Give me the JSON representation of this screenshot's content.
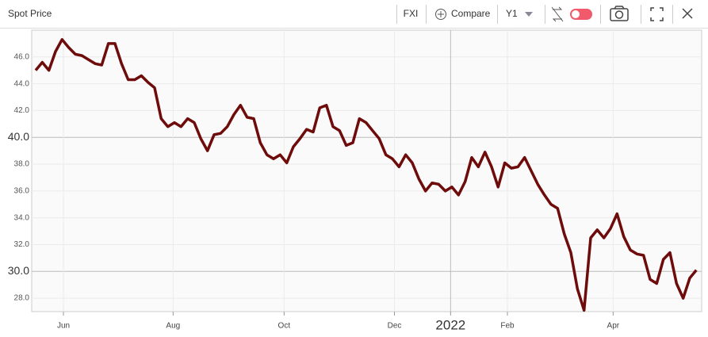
{
  "toolbar": {
    "symbol": "FXI",
    "compare": "Compare",
    "period": "Y1"
  },
  "chart_data": {
    "type": "line",
    "title": "Spot Price",
    "color": "#6e0b0b",
    "values": [
      45.0,
      45.6,
      45.0,
      46.4,
      47.3,
      46.7,
      46.2,
      46.1,
      45.8,
      45.5,
      45.4,
      47.0,
      47.0,
      45.5,
      44.3,
      44.3,
      44.6,
      44.1,
      43.7,
      41.4,
      40.8,
      41.1,
      40.8,
      41.4,
      41.1,
      39.9,
      39.0,
      40.2,
      40.3,
      40.8,
      41.7,
      42.4,
      41.5,
      41.4,
      39.6,
      38.7,
      38.4,
      38.7,
      38.1,
      39.3,
      39.9,
      40.6,
      40.4,
      42.2,
      42.4,
      40.8,
      40.5,
      39.4,
      39.6,
      41.4,
      41.1,
      40.5,
      39.9,
      38.7,
      38.4,
      37.8,
      38.7,
      38.1,
      36.9,
      36.0,
      36.6,
      36.5,
      36.0,
      36.3,
      35.7,
      36.7,
      38.5,
      37.8,
      38.9,
      37.8,
      36.3,
      38.1,
      37.7,
      37.8,
      38.5,
      37.5,
      36.5,
      35.7,
      35.0,
      34.7,
      32.8,
      31.4,
      28.7,
      27.1,
      32.5,
      33.1,
      32.5,
      33.2,
      34.3,
      32.6,
      31.6,
      31.3,
      31.2,
      29.4,
      29.1,
      30.9,
      31.4,
      29.1,
      28.0,
      29.5,
      30.1
    ],
    "xlim": [
      -0.6,
      100.8
    ],
    "xticks": [
      {
        "value": 4.2,
        "label": "Jun"
      },
      {
        "value": 20.8,
        "label": "Aug"
      },
      {
        "value": 37.6,
        "label": "Oct"
      },
      {
        "value": 54.3,
        "label": "Dec"
      },
      {
        "value": 71.4,
        "label": "Feb"
      },
      {
        "value": 87.4,
        "label": "Apr"
      }
    ],
    "xticks_major": [
      {
        "value": 62.8,
        "label": "2022"
      }
    ],
    "ylim": [
      27,
      48
    ],
    "yticks": [
      {
        "value": 28,
        "label": "28.0"
      },
      {
        "value": 32,
        "label": "32.0"
      },
      {
        "value": 34,
        "label": "34.0"
      },
      {
        "value": 36,
        "label": "36.0"
      },
      {
        "value": 38,
        "label": "38.0"
      },
      {
        "value": 42,
        "label": "42.0"
      },
      {
        "value": 44,
        "label": "44.0"
      },
      {
        "value": 46,
        "label": "46.0"
      }
    ],
    "yticks_major": [
      {
        "value": 30,
        "label": "30.0"
      },
      {
        "value": 40,
        "label": "40.0"
      }
    ],
    "grid": true
  }
}
